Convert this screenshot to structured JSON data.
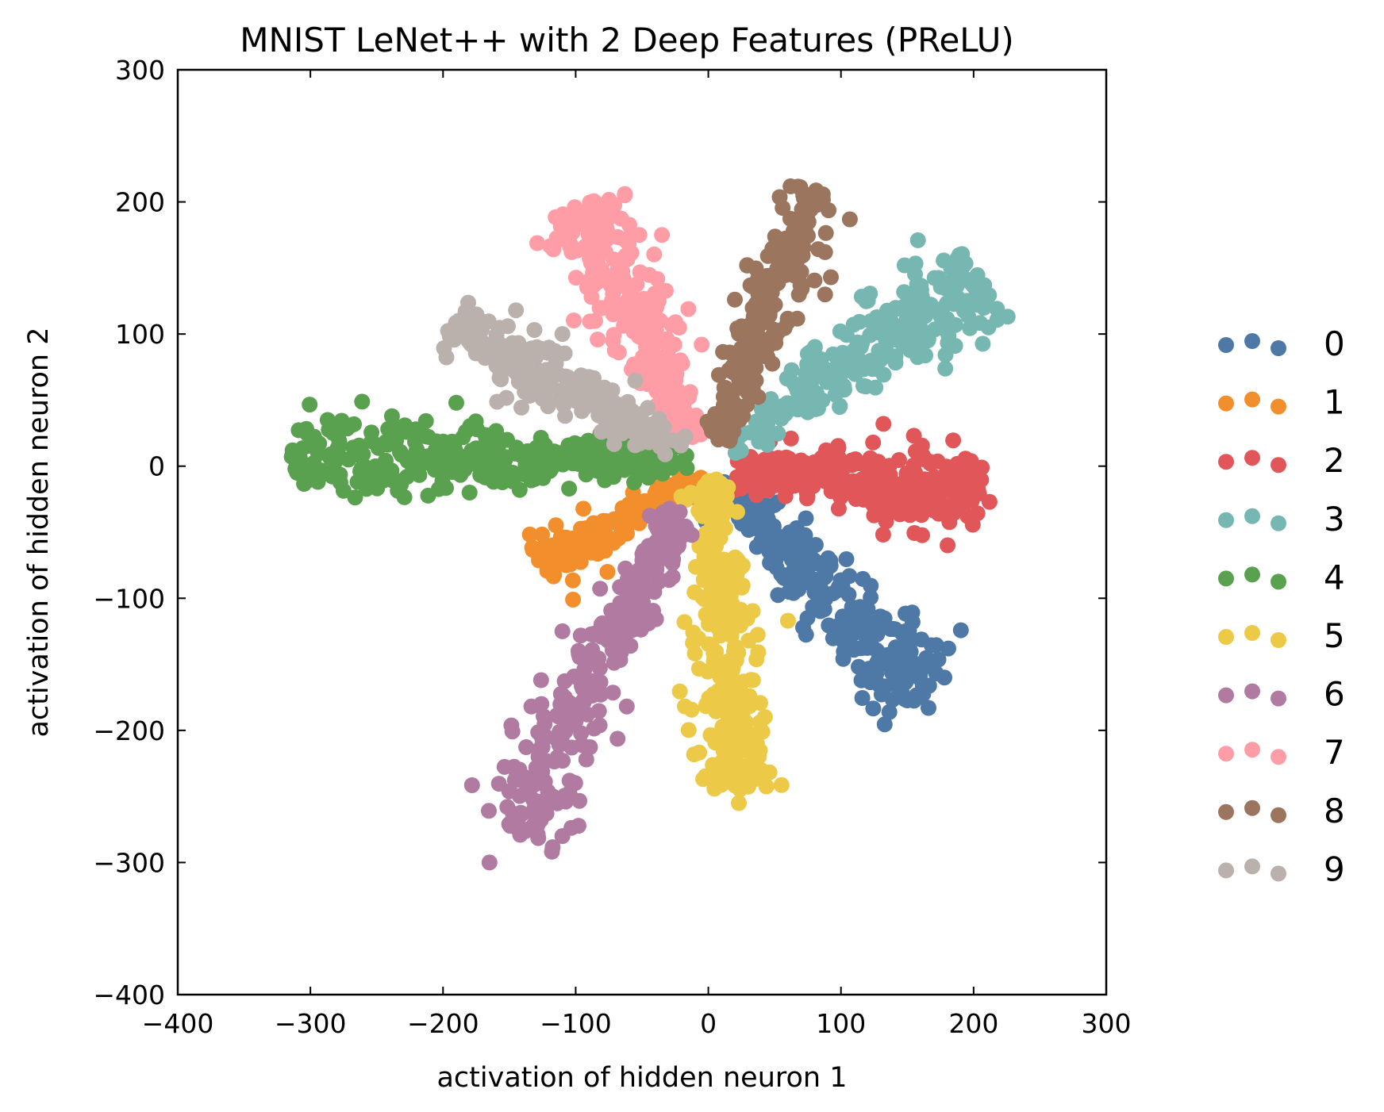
{
  "chart_data": {
    "type": "scatter",
    "title": "MNIST LeNet++ with 2 Deep Features (PReLU)",
    "xlabel": "activation of hidden neuron 1",
    "ylabel": "activation of hidden neuron 2",
    "xlim": [
      -400,
      300
    ],
    "ylim": [
      -400,
      300
    ],
    "xticks": [
      -400,
      -300,
      -200,
      -100,
      0,
      100,
      200,
      300
    ],
    "yticks": [
      -400,
      -300,
      -200,
      -100,
      0,
      100,
      200,
      300
    ],
    "xtick_labels": [
      "−400",
      "−300",
      "−200",
      "−100",
      "0",
      "100",
      "200",
      "300"
    ],
    "ytick_labels": [
      "−400",
      "−300",
      "−200",
      "−100",
      "0",
      "100",
      "200",
      "300"
    ],
    "grid": false,
    "legend_position": "right",
    "series": [
      {
        "name": "0",
        "color": "#4E79A7",
        "start": [
          15,
          -20
        ],
        "end": [
          165,
          -170
        ],
        "width": 14,
        "count": 260,
        "extra": [
          [
            166,
            -183
          ],
          [
            178,
            -160
          ],
          [
            12,
            -12
          ]
        ]
      },
      {
        "name": "1",
        "color": "#F28E2B",
        "start": [
          -5,
          -8
        ],
        "end": [
          -130,
          -75
        ],
        "width": 7,
        "count": 170,
        "extra": [
          [
            -102,
            -101
          ],
          [
            -76,
            -80
          ]
        ]
      },
      {
        "name": "2",
        "color": "#E15759",
        "start": [
          20,
          -5
        ],
        "end": [
          205,
          -20
        ],
        "width": 13,
        "count": 300,
        "extra": [
          [
            212,
            -27
          ],
          [
            132,
            32
          ],
          [
            155,
            23
          ]
        ]
      },
      {
        "name": "3",
        "color": "#76B7B2",
        "start": [
          15,
          15
        ],
        "end": [
          205,
          145
        ],
        "width": 14,
        "count": 260,
        "extra": [
          [
            158,
            171
          ],
          [
            208,
            137
          ],
          [
            195,
            116
          ],
          [
            75,
            85
          ]
        ]
      },
      {
        "name": "4",
        "color": "#59A14F",
        "start": [
          -15,
          5
        ],
        "end": [
          -315,
          10
        ],
        "width": 13,
        "count": 300,
        "extra": [
          [
            -180,
            -20
          ],
          [
            -310,
            -5
          ],
          [
            -190,
            48
          ],
          [
            -105,
            -17
          ]
        ]
      },
      {
        "name": "5",
        "color": "#EDC948",
        "start": [
          2,
          -10
        ],
        "end": [
          22,
          -245
        ],
        "width": 12,
        "count": 280,
        "extra": [
          [
            60,
            -117
          ],
          [
            -18,
            -118
          ],
          [
            23,
            -255
          ]
        ]
      },
      {
        "name": "6",
        "color": "#B07AA1",
        "start": [
          -20,
          -35
        ],
        "end": [
          -150,
          -275
        ],
        "width": 14,
        "count": 280,
        "extra": [
          [
            -165,
            -300
          ],
          [
            -110,
            -280
          ],
          [
            -110,
            -125
          ],
          [
            -92,
            -222
          ]
        ]
      },
      {
        "name": "7",
        "color": "#FF9DA7",
        "start": [
          -10,
          20
        ],
        "end": [
          -95,
          200
        ],
        "width": 14,
        "count": 270,
        "extra": [
          [
            -63,
            205
          ],
          [
            -35,
            175
          ],
          [
            -52,
            175
          ],
          [
            -5,
            92
          ]
        ]
      },
      {
        "name": "8",
        "color": "#9C755F",
        "start": [
          5,
          20
        ],
        "end": [
          80,
          210
        ],
        "width": 10,
        "count": 260,
        "extra": [
          [
            88,
            130
          ],
          [
            88,
            162
          ],
          [
            20,
            126
          ]
        ]
      },
      {
        "name": "9",
        "color": "#BAB0AC",
        "start": [
          -20,
          15
        ],
        "end": [
          -195,
          105
        ],
        "width": 11,
        "count": 230,
        "extra": [
          [
            -145,
            118
          ],
          [
            -110,
            100
          ],
          [
            -108,
            38
          ]
        ]
      }
    ]
  }
}
